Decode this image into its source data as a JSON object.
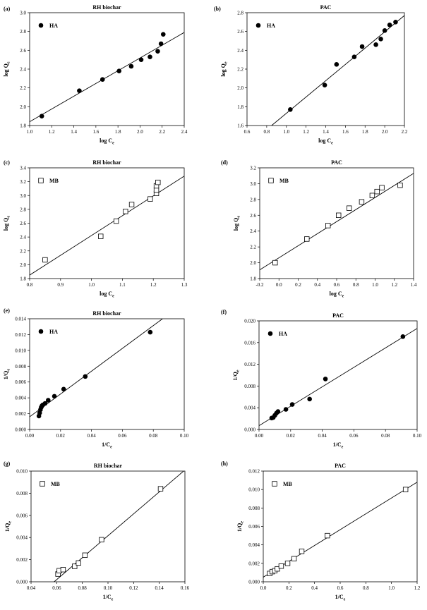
{
  "chart_data": [
    {
      "panel": "(a)",
      "type": "scatter",
      "title": "RH biochar",
      "xlabel": "log C",
      "xsub": "e",
      "ylabel": "log Q",
      "ysub": "e",
      "xlim": [
        1.0,
        2.4
      ],
      "ylim": [
        1.8,
        3.0
      ],
      "xticks": [
        "1.0",
        "1.2",
        "1.4",
        "1.6",
        "1.8",
        "2.0",
        "2.2",
        "2.4"
      ],
      "yticks": [
        "1.8",
        "2.0",
        "2.2",
        "2.4",
        "2.6",
        "2.8",
        "3.0"
      ],
      "marker": "filled-circle",
      "series": [
        {
          "name": "HA",
          "x": [
            1.11,
            1.45,
            1.66,
            1.81,
            1.92,
            2.01,
            2.09,
            2.16,
            2.19,
            2.21
          ],
          "y": [
            1.9,
            2.17,
            2.29,
            2.38,
            2.43,
            2.5,
            2.53,
            2.59,
            2.67,
            2.77
          ]
        }
      ],
      "fit_line": [
        [
          1.0,
          1.84
        ],
        [
          2.4,
          2.79
        ]
      ]
    },
    {
      "panel": "(b)",
      "type": "scatter",
      "title": "PAC",
      "xlabel": "log C",
      "xsub": "e",
      "ylabel": "log Q",
      "ysub": "e",
      "xlim": [
        0.6,
        2.2
      ],
      "ylim": [
        1.6,
        2.8
      ],
      "xticks": [
        "0.6",
        "0.8",
        "1.0",
        "1.2",
        "1.4",
        "1.6",
        "1.8",
        "2.0",
        "2.2"
      ],
      "yticks": [
        "1.6",
        "1.8",
        "2.0",
        "2.2",
        "2.4",
        "2.6",
        "2.8"
      ],
      "marker": "filled-circle",
      "series": [
        {
          "name": "HA",
          "x": [
            1.04,
            1.39,
            1.51,
            1.69,
            1.77,
            1.91,
            1.96,
            2.0,
            2.05,
            2.11
          ],
          "y": [
            1.77,
            2.03,
            2.25,
            2.33,
            2.44,
            2.46,
            2.52,
            2.61,
            2.67,
            2.7
          ]
        }
      ],
      "fit_line": [
        [
          0.85,
          1.6
        ],
        [
          2.2,
          2.77
        ]
      ]
    },
    {
      "panel": "(c)",
      "type": "scatter",
      "title": "RH biochar",
      "xlabel": "log C",
      "xsub": "e",
      "ylabel": "log Q",
      "ysub": "e",
      "xlim": [
        0.8,
        1.3
      ],
      "ylim": [
        1.8,
        3.4
      ],
      "xticks": [
        "0.8",
        "0.9",
        "1.0",
        "1.1",
        "1.2",
        "1.3"
      ],
      "yticks": [
        "1.8",
        "2.0",
        "2.2",
        "2.4",
        "2.6",
        "2.8",
        "3.0",
        "3.2",
        "3.4"
      ],
      "marker": "open-square",
      "series": [
        {
          "name": "MB",
          "x": [
            0.85,
            1.03,
            1.08,
            1.11,
            1.13,
            1.19,
            1.21,
            1.21,
            1.21,
            1.215
          ],
          "y": [
            2.07,
            2.41,
            2.63,
            2.77,
            2.87,
            2.95,
            3.03,
            3.08,
            3.14,
            3.19
          ]
        }
      ],
      "fit_line": [
        [
          0.8,
          1.85
        ],
        [
          1.3,
          3.28
        ]
      ]
    },
    {
      "panel": "(d)",
      "type": "scatter",
      "title": "PAC",
      "xlabel": "log C",
      "xsub": "e",
      "ylabel": "log Q",
      "ysub": "e",
      "xlim": [
        -0.2,
        1.4
      ],
      "ylim": [
        1.8,
        3.2
      ],
      "xticks": [
        "-0.2",
        "0.0",
        "0.2",
        "0.4",
        "0.6",
        "0.8",
        "1.0",
        "1.2",
        "1.4"
      ],
      "yticks": [
        "1.8",
        "2.0",
        "2.2",
        "2.4",
        "2.6",
        "2.8",
        "3.0",
        "3.2"
      ],
      "marker": "open-square",
      "series": [
        {
          "name": "MB",
          "x": [
            -0.04,
            0.29,
            0.51,
            0.62,
            0.73,
            0.86,
            0.97,
            1.02,
            1.07,
            1.26
          ],
          "y": [
            2.0,
            2.3,
            2.47,
            2.6,
            2.69,
            2.77,
            2.85,
            2.9,
            2.95,
            2.98
          ]
        }
      ],
      "fit_line": [
        [
          -0.2,
          1.91
        ],
        [
          1.4,
          3.13
        ]
      ]
    },
    {
      "panel": "(e)",
      "type": "scatter",
      "title": "RH biochar",
      "xlabel": "1/C",
      "xsub": "e",
      "ylabel": "1/Q",
      "ysub": "e",
      "xlim": [
        0.0,
        0.1
      ],
      "ylim": [
        0.0,
        0.014
      ],
      "xticks": [
        "0.00",
        "0.02",
        "0.04",
        "0.06",
        "0.08",
        "0.10"
      ],
      "yticks": [
        "0.000",
        "0.002",
        "0.004",
        "0.006",
        "0.008",
        "0.010",
        "0.012",
        "0.014"
      ],
      "marker": "filled-circle",
      "series": [
        {
          "name": "HA",
          "x": [
            0.006,
            0.0065,
            0.007,
            0.0075,
            0.008,
            0.0085,
            0.01,
            0.012,
            0.016,
            0.022,
            0.036,
            0.078
          ],
          "y": [
            0.0017,
            0.0021,
            0.0025,
            0.0028,
            0.003,
            0.0031,
            0.0033,
            0.0037,
            0.0042,
            0.0051,
            0.0067,
            0.0123
          ]
        }
      ],
      "fit_line": [
        [
          0.0,
          0.0016
        ],
        [
          0.086,
          0.014
        ]
      ]
    },
    {
      "panel": "(f)",
      "type": "scatter",
      "title": "PAC",
      "xlabel": "1/C",
      "xsub": "e",
      "ylabel": "1/Q",
      "ysub": "e",
      "xlim": [
        0.0,
        0.1
      ],
      "ylim": [
        0.0,
        0.02
      ],
      "xticks": [
        "0.00",
        "0.02",
        "0.04",
        "0.06",
        "0.08",
        "0.10"
      ],
      "yticks": [
        "0.000",
        "0.004",
        "0.008",
        "0.012",
        "0.016",
        "0.020"
      ],
      "marker": "filled-circle",
      "series": [
        {
          "name": "HA",
          "x": [
            0.008,
            0.009,
            0.01,
            0.011,
            0.012,
            0.017,
            0.021,
            0.032,
            0.042,
            0.091
          ],
          "y": [
            0.0021,
            0.0022,
            0.0026,
            0.003,
            0.0033,
            0.0037,
            0.0046,
            0.0056,
            0.0093,
            0.0171
          ]
        }
      ],
      "fit_line": [
        [
          0.0,
          0.0007
        ],
        [
          0.1,
          0.0186
        ]
      ]
    },
    {
      "panel": "(g)",
      "type": "scatter",
      "title": "RH biochar",
      "xlabel": "1/C",
      "xsub": "e",
      "ylabel": "1/Q",
      "ysub": "e",
      "xlim": [
        0.04,
        0.16
      ],
      "ylim": [
        0.0,
        0.01
      ],
      "xticks": [
        "0.04",
        "0.06",
        "0.08",
        "0.10",
        "0.12",
        "0.14",
        "0.16"
      ],
      "yticks": [
        "0.000",
        "0.002",
        "0.004",
        "0.006",
        "0.008",
        "0.010"
      ],
      "marker": "open-square",
      "series": [
        {
          "name": "MB",
          "x": [
            0.061,
            0.062,
            0.065,
            0.074,
            0.077,
            0.082,
            0.095,
            0.141
          ],
          "y": [
            0.0007,
            0.001,
            0.0011,
            0.0014,
            0.0017,
            0.0024,
            0.0038,
            0.0084
          ]
        }
      ],
      "fit_line": [
        [
          0.058,
          0.0
        ],
        [
          0.16,
          0.0101
        ]
      ]
    },
    {
      "panel": "(h)",
      "type": "scatter",
      "title": "PAC",
      "xlabel": "1/C",
      "xsub": "e",
      "ylabel": "1/Q",
      "ysub": "e",
      "xlim": [
        0.0,
        1.2
      ],
      "ylim": [
        0.0,
        0.012
      ],
      "xticks": [
        "0.0",
        "0.2",
        "0.4",
        "0.6",
        "0.8",
        "1.0",
        "1.2"
      ],
      "yticks": [
        "0.000",
        "0.002",
        "0.004",
        "0.006",
        "0.008",
        "0.010",
        "0.012"
      ],
      "marker": "open-square",
      "series": [
        {
          "name": "MB",
          "x": [
            0.05,
            0.07,
            0.09,
            0.11,
            0.14,
            0.19,
            0.24,
            0.3,
            0.5,
            1.11
          ],
          "y": [
            0.0009,
            0.0011,
            0.0012,
            0.0014,
            0.0017,
            0.002,
            0.0025,
            0.0033,
            0.005,
            0.01
          ]
        }
      ],
      "fit_line": [
        [
          0.0,
          0.0005
        ],
        [
          1.2,
          0.0108
        ]
      ]
    }
  ]
}
